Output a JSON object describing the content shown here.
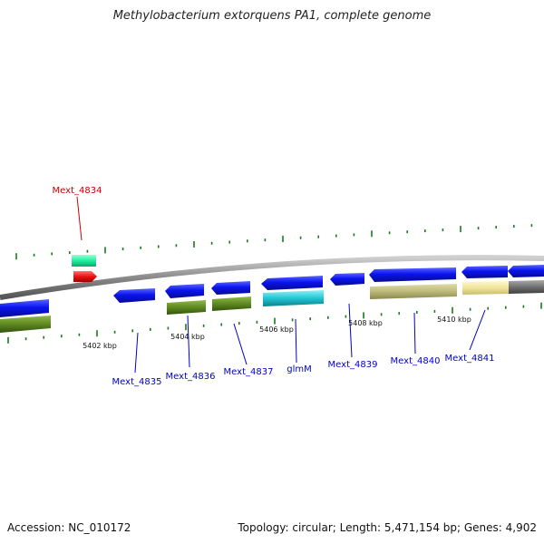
{
  "title": "Methylobacterium extorquens PA1, complete genome",
  "footer": {
    "accession": "Accession: NC_010172",
    "topology": "Topology: circular; Length: 5,471,154 bp; Genes: 4,902"
  },
  "colors": {
    "backbone": "#8a8a8a",
    "tick": "#1a7a1a",
    "gene_label": "#0000cc",
    "highlight_label": "#cc0000",
    "blue": "#0b14f0",
    "olive": "#5f8a22",
    "teal": "#21c6d4",
    "tan": "#bcb97a",
    "cream": "#efe59c",
    "gray": "#707070",
    "mint": "#1ef0a0",
    "red": "#f01010"
  },
  "map": {
    "kbp_labels": [
      "5402 kbp",
      "5404 kbp",
      "5406 kbp",
      "5408 kbp",
      "5410 kbp"
    ],
    "genes": [
      {
        "label": "Mext_4834",
        "highlight": true
      },
      {
        "label": "Mext_4835"
      },
      {
        "label": "Mext_4836"
      },
      {
        "label": "Mext_4837"
      },
      {
        "label": "glmM"
      },
      {
        "label": "Mext_4839"
      },
      {
        "label": "Mext_4840"
      },
      {
        "label": "Mext_4841"
      }
    ]
  }
}
